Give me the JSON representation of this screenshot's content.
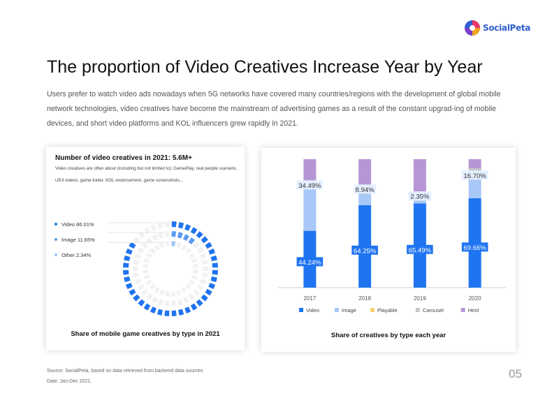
{
  "brand": {
    "name": "SocialPeta"
  },
  "page": {
    "title": "The proportion of Video Creatives Increase Year by Year",
    "intro": "Users prefer to watch video ads nowadays when 5G networks have covered many countries/regions with the development of global mobile network technologies, video creatives have become the mainstream of advertising games as a result of the constant upgrad-ing of mobile devices, and short video platforms and KOL influencers grew rapidly in 2021.",
    "page_number": "05"
  },
  "footer": {
    "source": "Source: SocialPeta, based on data retrieved from backend data sources",
    "date": "Date: Jan-Dec 2021."
  },
  "donut_panel": {
    "heading": "Number of video creatives in 2021: 5.6M+",
    "description": "Video creatives are often about (including but not limited to): GamePlay, real people scenario, UE4 videos, game trailer, KOL endorsement, game screenshots..."
  },
  "chart_data": [
    {
      "type": "pie",
      "title": "Share of mobile game creatives by type in 2021",
      "categories": [
        "Video",
        "Image",
        "Other"
      ],
      "values": [
        86.01,
        11.65,
        2.34
      ],
      "legend_labels": [
        "Video 86.01%",
        "Image 11.65%",
        "Other 2.34%"
      ],
      "colors": [
        "#1f74f0",
        "#5c9bf2",
        "#9fc4f7"
      ],
      "legend_position": "left"
    },
    {
      "type": "bar",
      "stacked": true,
      "title": "Share of creatives by type each year",
      "categories": [
        "2017",
        "2018",
        "2019",
        "2020"
      ],
      "series": [
        {
          "name": "Video",
          "color": "#1f74f0",
          "values": [
            44.24,
            64.25,
            65.49,
            69.66
          ]
        },
        {
          "name": "Image",
          "color": "#a8c8f7",
          "values": [
            34.49,
            8.94,
            2.35,
            16.7
          ]
        },
        {
          "name": "Playable",
          "color": "#f7d36e",
          "values": [
            0.5,
            2.0,
            0.3,
            2.5
          ]
        },
        {
          "name": "Carousel",
          "color": "#c6c6c6",
          "values": [
            3.5,
            2.5,
            0.3,
            4.0
          ]
        },
        {
          "name": "Html",
          "color": "#b796d6",
          "values": [
            17.27,
            22.31,
            31.56,
            7.14
          ]
        }
      ],
      "data_labels": [
        {
          "series": "Video",
          "labels": [
            "44.24%",
            "64.25%",
            "65.49%",
            "69.66%"
          ]
        },
        {
          "series": "Image",
          "labels": [
            "34.49%",
            "8.94%",
            "2.35%",
            "16.70%"
          ]
        }
      ],
      "ylim": [
        0,
        100
      ],
      "grid": false,
      "legend_position": "bottom"
    }
  ]
}
